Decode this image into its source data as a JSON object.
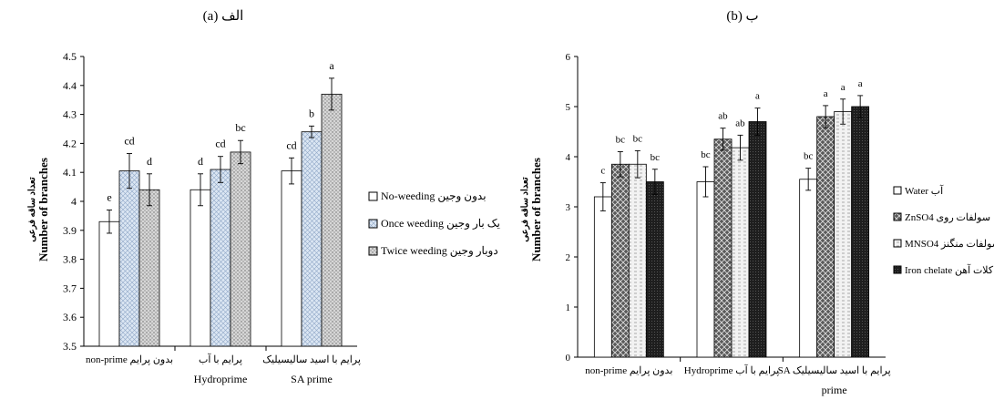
{
  "chart_data": [
    {
      "type": "bar",
      "title": "الف (a)",
      "ylabel": "Number of branches",
      "ylabel_fa": "تعداد ساقه فرعی",
      "ylim": [
        3.5,
        4.5
      ],
      "yticks": [
        "3.5",
        "3.6",
        "3.7",
        "3.8",
        "3.9",
        "4",
        "4.1",
        "4.2",
        "4.3",
        "4.4",
        "4.5"
      ],
      "categories": [
        {
          "line1": "non-prime بدون پرایم",
          "line2": ""
        },
        {
          "line1": "پرایم با آب",
          "line2": "Hydroprime"
        },
        {
          "line1": "پرایم با اسید سالیسیلیک",
          "line2": "SA prime"
        }
      ],
      "series": [
        {
          "name": "No-weeding بدون وجین",
          "pattern": "white",
          "values": [
            3.93,
            4.04,
            4.105
          ],
          "errors": [
            0.04,
            0.055,
            0.045
          ],
          "labels": [
            "e",
            "d",
            "cd"
          ]
        },
        {
          "name": "Once weeding یک بار وجین",
          "pattern": "lightblue-grid",
          "values": [
            4.105,
            4.11,
            4.24
          ],
          "errors": [
            0.06,
            0.045,
            0.02
          ],
          "labels": [
            "cd",
            "cd",
            "b"
          ]
        },
        {
          "name": "Twice weeding دوبار وجین",
          "pattern": "gray-dots",
          "values": [
            4.04,
            4.17,
            4.37
          ],
          "errors": [
            0.055,
            0.04,
            0.055
          ],
          "labels": [
            "d",
            "bc",
            "a"
          ]
        }
      ],
      "grid": false,
      "legend": "right"
    },
    {
      "type": "bar",
      "title": "ب (b)",
      "ylabel": "Number of branches",
      "ylabel_fa": "تعداد ساقه فرعی",
      "ylim": [
        0,
        6
      ],
      "yticks": [
        "0",
        "1",
        "2",
        "3",
        "4",
        "5",
        "6"
      ],
      "categories": [
        {
          "line1": "non-prime بدون پرایم",
          "line2": ""
        },
        {
          "line1": "Hydroprime پرایم با آب",
          "line2": ""
        },
        {
          "line1": "SA پرایم با اسید سالیسیلیک",
          "line2": "prime"
        }
      ],
      "series": [
        {
          "name": "Water آب",
          "pattern": "white",
          "values": [
            3.2,
            3.5,
            3.55
          ],
          "errors": [
            0.28,
            0.3,
            0.22
          ],
          "labels": [
            "c",
            "bc",
            "bc"
          ]
        },
        {
          "name": "ZnSO4 سولفات روی",
          "pattern": "dark-cross",
          "values": [
            3.85,
            4.35,
            4.8
          ],
          "errors": [
            0.25,
            0.22,
            0.22
          ],
          "labels": [
            "bc",
            "ab",
            "a"
          ]
        },
        {
          "name": "MNSO4 سولفات منگنز",
          "pattern": "light-dashes",
          "values": [
            3.85,
            4.18,
            4.9
          ],
          "errors": [
            0.27,
            0.25,
            0.25
          ],
          "labels": [
            "bc",
            "ab",
            "a"
          ]
        },
        {
          "name": "Iron chelate کلات آهن",
          "pattern": "black-dots",
          "values": [
            3.5,
            4.7,
            5.0
          ],
          "errors": [
            0.25,
            0.27,
            0.22
          ],
          "labels": [
            "bc",
            "a",
            "a"
          ]
        }
      ],
      "grid": false,
      "legend": "right"
    }
  ]
}
